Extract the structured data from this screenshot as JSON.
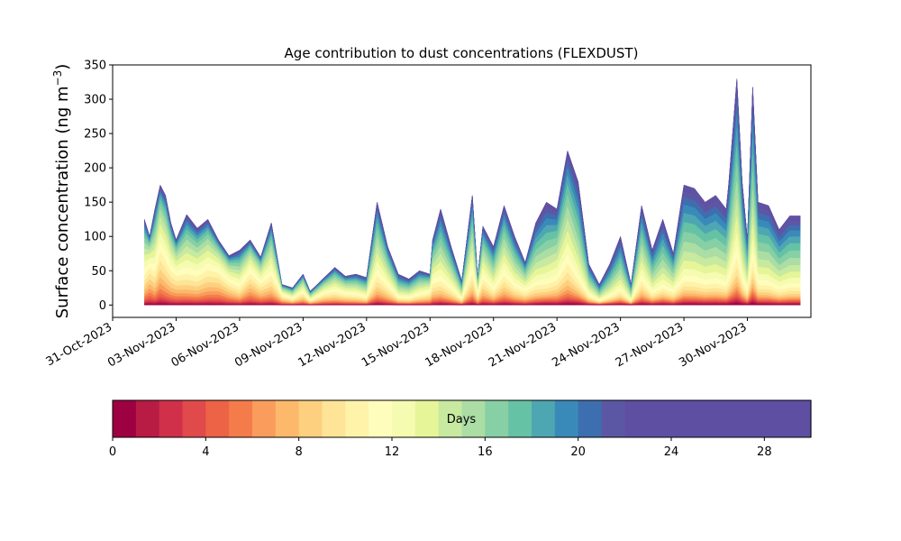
{
  "chart_data": {
    "type": "area",
    "title": "Age contribution to dust concentrations (FLEXDUST)",
    "ylabel": "Surface concentration (ng m",
    "ylabel_sup": "−3",
    "ylabel_close": ")",
    "xlabel": "",
    "x_start": "2023-10-31",
    "x_end": "2023-12-03",
    "ylim": [
      -18,
      350
    ],
    "yticks": [
      0,
      50,
      100,
      150,
      200,
      250,
      300,
      350
    ],
    "xticks": [
      "31-Oct-2023",
      "03-Nov-2023",
      "06-Nov-2023",
      "09-Nov-2023",
      "12-Nov-2023",
      "15-Nov-2023",
      "18-Nov-2023",
      "21-Nov-2023",
      "24-Nov-2023",
      "27-Nov-2023",
      "30-Nov-2023"
    ],
    "grid": false,
    "stacked": true,
    "total": {
      "x": [
        "2023-11-01T12",
        "2023-11-01T18",
        "2023-11-02T00",
        "2023-11-02T06",
        "2023-11-02T12",
        "2023-11-02T18",
        "2023-11-03T00",
        "2023-11-03T12",
        "2023-11-04T00",
        "2023-11-04T12",
        "2023-11-05T00",
        "2023-11-05T12",
        "2023-11-06T00",
        "2023-11-06T12",
        "2023-11-07T00",
        "2023-11-07T12",
        "2023-11-08T00",
        "2023-11-08T12",
        "2023-11-09T00",
        "2023-11-09T08",
        "2023-11-10T00",
        "2023-11-10T12",
        "2023-11-11T00",
        "2023-11-11T12",
        "2023-11-12T00",
        "2023-11-12T12",
        "2023-11-13T00",
        "2023-11-13T12",
        "2023-11-14T00",
        "2023-11-14T12",
        "2023-11-15T00",
        "2023-11-15T03",
        "2023-11-15T12",
        "2023-11-16T00",
        "2023-11-16T12",
        "2023-11-17T00",
        "2023-11-17T06",
        "2023-11-17T12",
        "2023-11-18T00",
        "2023-11-18T12",
        "2023-11-19T00",
        "2023-11-19T12",
        "2023-11-20T00",
        "2023-11-20T12",
        "2023-11-21T00",
        "2023-11-21T12",
        "2023-11-22T00",
        "2023-11-22T12",
        "2023-11-23T00",
        "2023-11-23T12",
        "2023-11-24T00",
        "2023-11-24T12",
        "2023-11-25T00",
        "2023-11-25T12",
        "2023-11-26T00",
        "2023-11-26T12",
        "2023-11-27T00",
        "2023-11-27T12",
        "2023-11-28T00",
        "2023-11-28T12",
        "2023-11-29T00",
        "2023-11-29T03",
        "2023-11-29T12",
        "2023-11-29T18",
        "2023-11-30T00",
        "2023-11-30T06",
        "2023-11-30T12",
        "2023-12-01T00",
        "2023-12-01T12",
        "2023-12-02T00",
        "2023-12-02T12"
      ],
      "y": [
        125,
        100,
        140,
        175,
        160,
        120,
        95,
        132,
        112,
        125,
        95,
        72,
        80,
        95,
        70,
        120,
        30,
        25,
        45,
        20,
        40,
        55,
        42,
        45,
        40,
        150,
        85,
        45,
        38,
        50,
        45,
        95,
        140,
        85,
        35,
        160,
        40,
        115,
        85,
        145,
        100,
        62,
        120,
        150,
        140,
        225,
        180,
        60,
        30,
        60,
        100,
        30,
        145,
        80,
        125,
        75,
        175,
        170,
        150,
        160,
        140,
        180,
        330,
        180,
        95,
        318,
        150,
        145,
        110,
        130,
        130
      ]
    },
    "colorbar": {
      "label": "Days",
      "min": 0,
      "max": 30,
      "ticks": [
        0,
        4,
        8,
        12,
        16,
        20,
        24,
        28
      ],
      "colors": [
        "#9e0142",
        "#b81b44",
        "#d0304a",
        "#e04a4b",
        "#ed6345",
        "#f47c4a",
        "#f99c5c",
        "#fcb96c",
        "#fdd07f",
        "#fee496",
        "#fff3aa",
        "#fffdbc",
        "#f5fbb0",
        "#e6f598",
        "#c7e9a0",
        "#abdda4",
        "#87cfa4",
        "#66c2a5",
        "#4fa6b3",
        "#3a8ab9",
        "#3d6fb0",
        "#5c57a4",
        "#5e4fa2",
        "#5e4fa2",
        "#5e4fa2",
        "#5e4fa2",
        "#5e4fa2",
        "#5e4fa2",
        "#5e4fa2",
        "#5e4fa2"
      ]
    }
  }
}
